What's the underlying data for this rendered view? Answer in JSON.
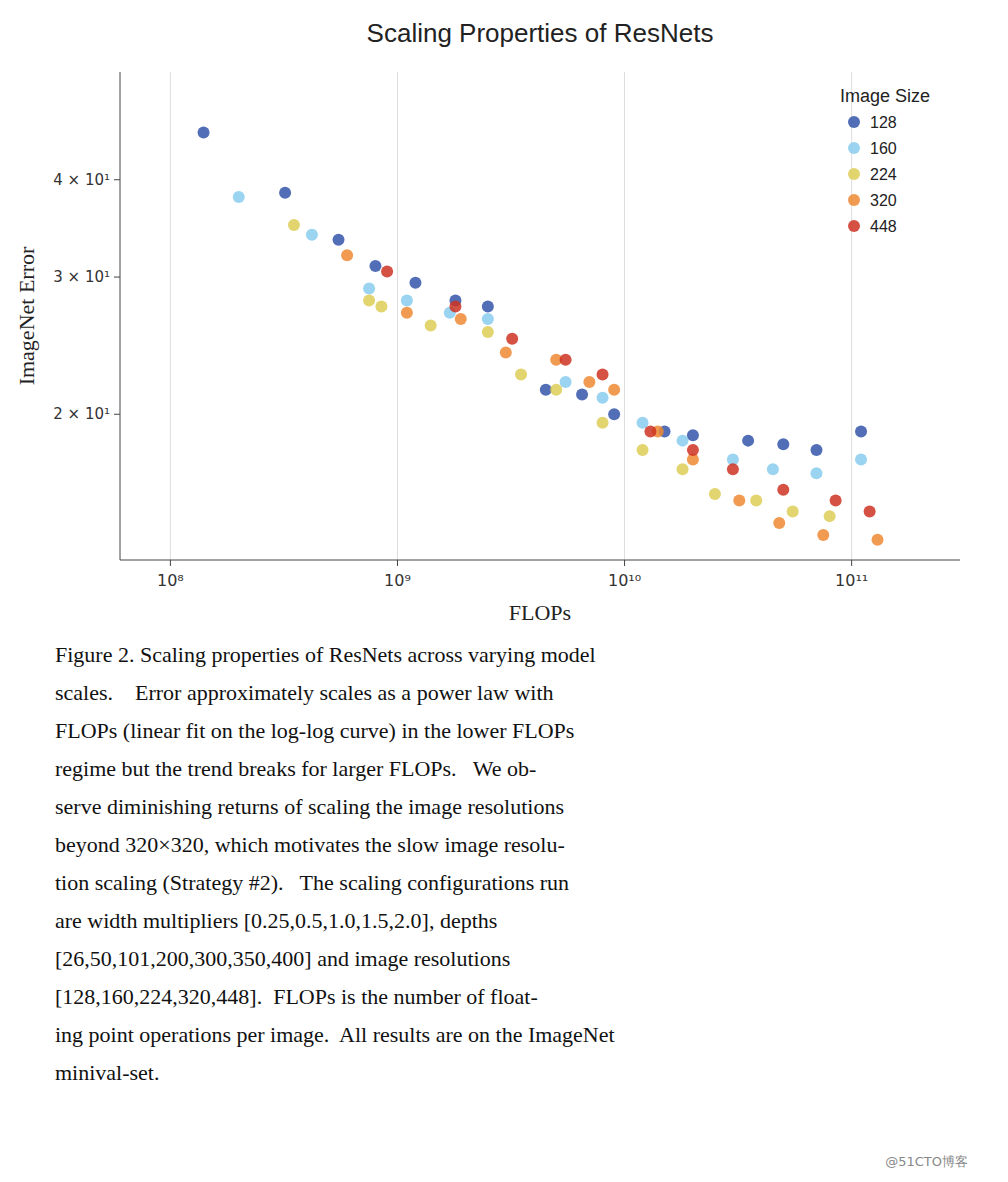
{
  "chart_data": {
    "type": "scatter",
    "title": "Scaling Properties of ResNets",
    "x_label": "FLOPs",
    "y_label": "ImageNet Error",
    "legend_title": "Image Size",
    "legend": "upper right",
    "log": true,
    "grid": "x",
    "xlim": [
      60000000.0,
      300000000000.0
    ],
    "ylim": [
      13,
      55
    ],
    "xticks": [
      {
        "value": 100000000.0,
        "label": "10⁸"
      },
      {
        "value": 1000000000.0,
        "label": "10⁹"
      },
      {
        "value": 10000000000.0,
        "label": "10¹⁰"
      },
      {
        "value": 100000000000.0,
        "label": "10¹¹"
      }
    ],
    "yticks": [
      {
        "value": 20,
        "label": "2 × 10¹"
      },
      {
        "value": 30,
        "label": "3 × 10¹"
      },
      {
        "value": 40,
        "label": "4 × 10¹"
      }
    ],
    "series": [
      {
        "name": "128",
        "color": "#3355aa",
        "x": [
          140000000.0,
          320000000.0,
          550000000.0,
          800000000.0,
          1200000000.0,
          1800000000.0,
          2500000000.0,
          4500000000.0,
          6500000000.0,
          9000000000.0,
          15000000000.0,
          20000000000.0,
          35000000000.0,
          50000000000.0,
          70000000000.0,
          110000000000.0
        ],
        "values": [
          46.0,
          38.5,
          33.5,
          31.0,
          29.5,
          28.0,
          27.5,
          21.5,
          21.2,
          20.0,
          19.0,
          18.8,
          18.5,
          18.3,
          18.0,
          19.0
        ]
      },
      {
        "name": "160",
        "color": "#88ccee",
        "x": [
          200000000.0,
          420000000.0,
          750000000.0,
          1100000000.0,
          1700000000.0,
          2500000000.0,
          5500000000.0,
          8000000000.0,
          12000000000.0,
          18000000000.0,
          30000000000.0,
          45000000000.0,
          70000000000.0,
          110000000000.0
        ],
        "values": [
          38.0,
          34.0,
          29.0,
          28.0,
          27.0,
          26.5,
          22.0,
          21.0,
          19.5,
          18.5,
          17.5,
          17.0,
          16.8,
          17.5
        ]
      },
      {
        "name": "224",
        "color": "#ddcc55",
        "x": [
          350000000.0,
          750000000.0,
          850000000.0,
          1400000000.0,
          2500000000.0,
          3500000000.0,
          5000000000.0,
          8000000000.0,
          12000000000.0,
          18000000000.0,
          25000000000.0,
          38000000000.0,
          55000000000.0,
          80000000000.0
        ],
        "values": [
          35.0,
          28.0,
          27.5,
          26.0,
          25.5,
          22.5,
          21.5,
          19.5,
          18.0,
          17.0,
          15.8,
          15.5,
          15.0,
          14.8
        ]
      },
      {
        "name": "320",
        "color": "#ee8833",
        "x": [
          600000000.0,
          1100000000.0,
          1900000000.0,
          3000000000.0,
          5000000000.0,
          7000000000.0,
          9000000000.0,
          14000000000.0,
          20000000000.0,
          32000000000.0,
          48000000000.0,
          75000000000.0,
          130000000000.0
        ],
        "values": [
          32.0,
          27.0,
          26.5,
          24.0,
          23.5,
          22.0,
          21.5,
          19.0,
          17.5,
          15.5,
          14.5,
          14.0,
          13.8
        ]
      },
      {
        "name": "448",
        "color": "#cc3322",
        "x": [
          900000000.0,
          1800000000.0,
          3200000000.0,
          5500000000.0,
          8000000000.0,
          13000000000.0,
          20000000000.0,
          30000000000.0,
          50000000000.0,
          85000000000.0,
          120000000000.0
        ],
        "values": [
          30.5,
          27.5,
          25.0,
          23.5,
          22.5,
          19.0,
          18.0,
          17.0,
          16.0,
          15.5,
          15.0
        ]
      }
    ],
    "annotations": [
      "Figure 2. Scaling properties of ResNets across varying model",
      "scales.    Error approximately scales as a power law with",
      "FLOPs (linear fit on the log-log curve) in the lower FLOPs",
      "regime but the trend breaks for larger FLOPs.   We ob-",
      "serve diminishing returns of scaling the image resolutions",
      "beyond 320×320, which motivates the slow image resolu-",
      "tion scaling (Strategy #2).   The scaling configurations run",
      "are width multipliers [0.25,0.5,1.0,1.5,2.0], depths",
      "[26,50,101,200,300,350,400] and image resolutions",
      "[128,160,224,320,448].  FLOPs is the number of float-",
      "ing point operations per image.  All results are on the ImageNet",
      "minival-set."
    ],
    "watermark": "@51CTO博客"
  }
}
